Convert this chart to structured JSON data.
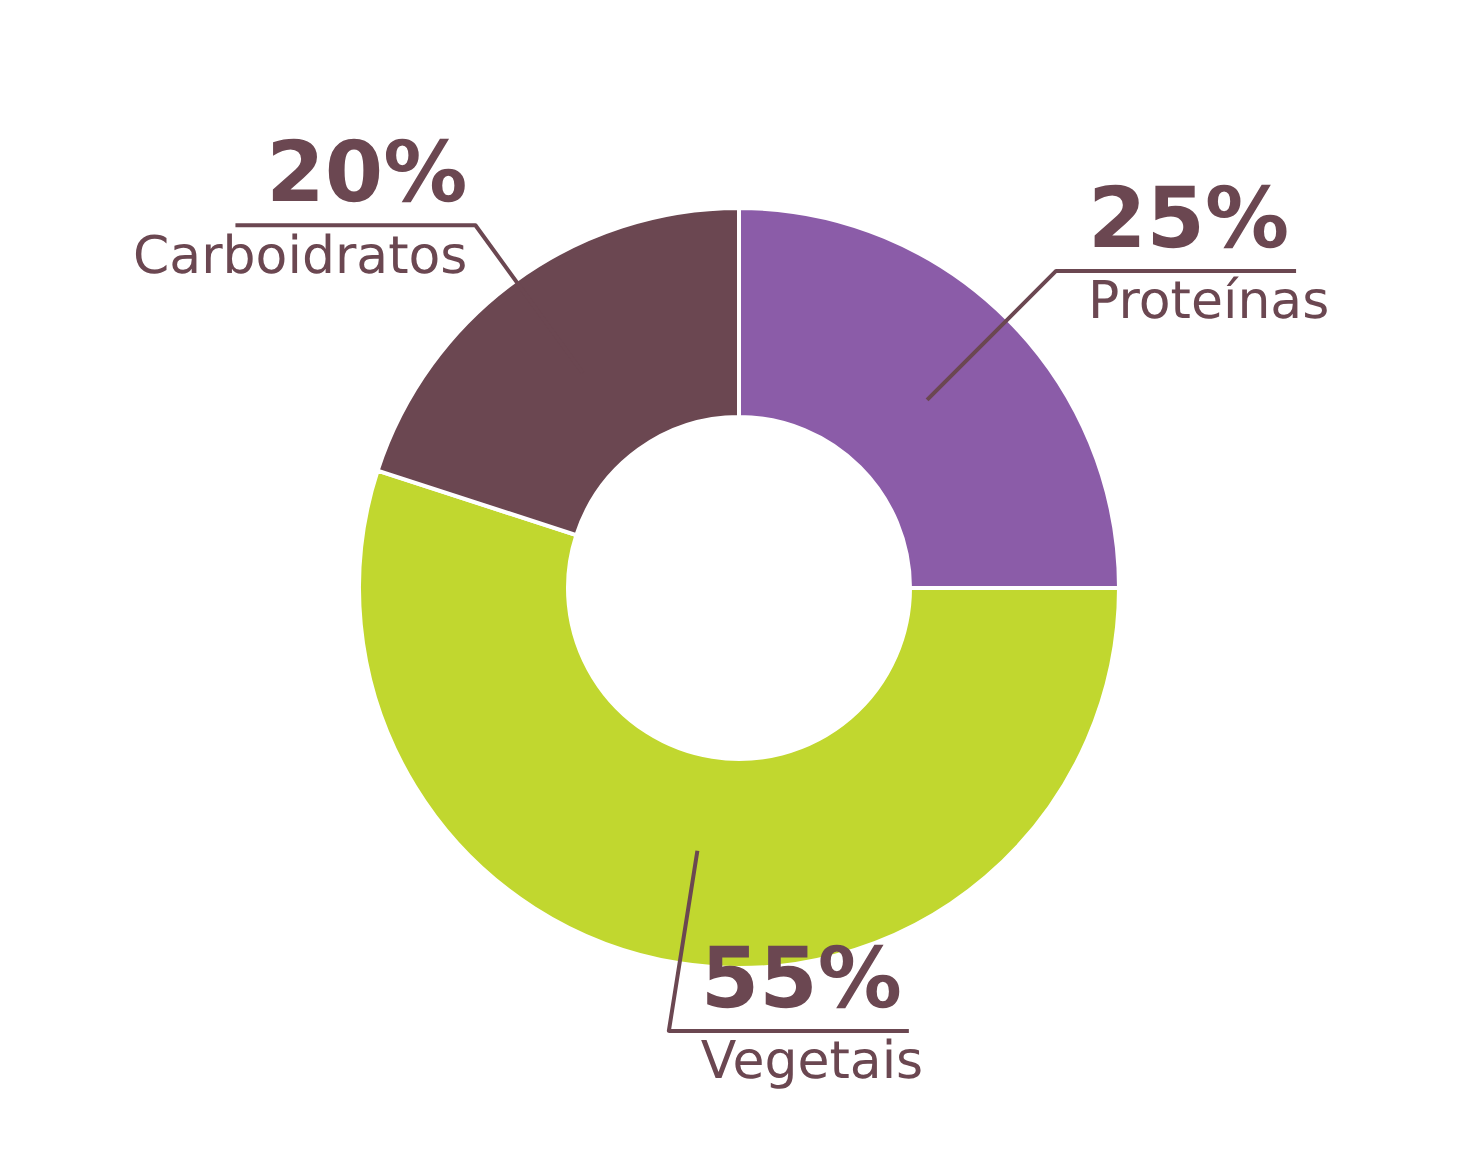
{
  "chart_data": {
    "type": "donut",
    "categories": [
      "Proteínas",
      "Vegetais",
      "Carboidratos"
    ],
    "values": [
      25,
      55,
      20
    ],
    "colors": [
      "#8b5ca8",
      "#c1d72f",
      "#6b4751"
    ],
    "value_labels": [
      "25%",
      "55%",
      "20%"
    ],
    "legend": false
  }
}
